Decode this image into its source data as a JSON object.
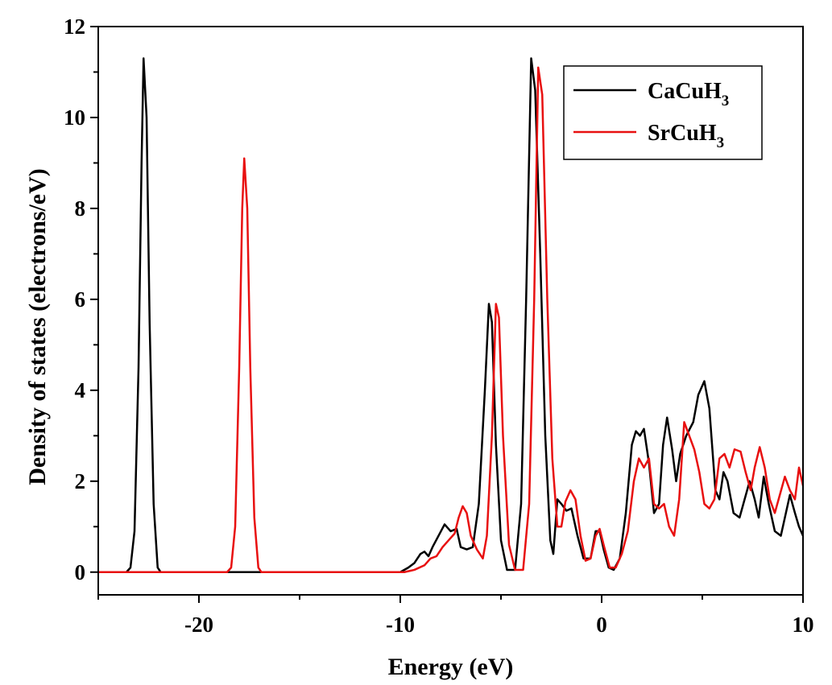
{
  "chart_data": {
    "type": "line",
    "xlabel": "Energy (eV)",
    "ylabel": "Density of states (electrons/eV)",
    "xlim": [
      -25,
      10
    ],
    "ylim": [
      -0.5,
      12
    ],
    "xticks": [
      -20,
      -10,
      0,
      10
    ],
    "yticks": [
      0,
      2,
      4,
      6,
      8,
      10,
      12
    ],
    "grid": false,
    "legend_position": "top-right",
    "series": [
      {
        "name": "CaCuH3",
        "legend": {
          "base": "CaCuH",
          "sub": "3"
        },
        "color": "#000000",
        "points": [
          [
            -25,
            0
          ],
          [
            -23.6,
            0
          ],
          [
            -23.4,
            0.1
          ],
          [
            -23.2,
            0.9
          ],
          [
            -23.0,
            4.5
          ],
          [
            -22.85,
            9.0
          ],
          [
            -22.75,
            11.3
          ],
          [
            -22.6,
            10.0
          ],
          [
            -22.45,
            5.5
          ],
          [
            -22.25,
            1.5
          ],
          [
            -22.05,
            0.1
          ],
          [
            -21.9,
            0
          ],
          [
            -10,
            0
          ],
          [
            -9.6,
            0.1
          ],
          [
            -9.3,
            0.2
          ],
          [
            -9.0,
            0.4
          ],
          [
            -8.8,
            0.45
          ],
          [
            -8.6,
            0.35
          ],
          [
            -8.4,
            0.55
          ],
          [
            -8.1,
            0.8
          ],
          [
            -7.8,
            1.05
          ],
          [
            -7.5,
            0.9
          ],
          [
            -7.2,
            0.95
          ],
          [
            -7.0,
            0.55
          ],
          [
            -6.7,
            0.5
          ],
          [
            -6.4,
            0.55
          ],
          [
            -6.1,
            1.5
          ],
          [
            -5.8,
            4.0
          ],
          [
            -5.6,
            5.9
          ],
          [
            -5.45,
            5.5
          ],
          [
            -5.25,
            2.8
          ],
          [
            -5.0,
            0.7
          ],
          [
            -4.7,
            0.05
          ],
          [
            -4.3,
            0.05
          ],
          [
            -4.0,
            1.5
          ],
          [
            -3.75,
            6.0
          ],
          [
            -3.5,
            11.3
          ],
          [
            -3.3,
            10.6
          ],
          [
            -3.05,
            7.0
          ],
          [
            -2.8,
            3.0
          ],
          [
            -2.55,
            0.7
          ],
          [
            -2.4,
            0.4
          ],
          [
            -2.2,
            1.6
          ],
          [
            -2.0,
            1.5
          ],
          [
            -1.75,
            1.35
          ],
          [
            -1.5,
            1.4
          ],
          [
            -1.2,
            0.8
          ],
          [
            -0.9,
            0.3
          ],
          [
            -0.55,
            0.3
          ],
          [
            -0.3,
            0.9
          ],
          [
            -0.1,
            0.9
          ],
          [
            0.1,
            0.5
          ],
          [
            0.35,
            0.1
          ],
          [
            0.6,
            0.05
          ],
          [
            0.9,
            0.3
          ],
          [
            1.2,
            1.3
          ],
          [
            1.5,
            2.8
          ],
          [
            1.7,
            3.1
          ],
          [
            1.9,
            3.0
          ],
          [
            2.1,
            3.15
          ],
          [
            2.35,
            2.4
          ],
          [
            2.6,
            1.3
          ],
          [
            2.85,
            1.5
          ],
          [
            3.05,
            2.8
          ],
          [
            3.25,
            3.4
          ],
          [
            3.5,
            2.7
          ],
          [
            3.7,
            2.0
          ],
          [
            3.9,
            2.6
          ],
          [
            4.2,
            3.0
          ],
          [
            4.55,
            3.3
          ],
          [
            4.8,
            3.9
          ],
          [
            5.1,
            4.2
          ],
          [
            5.35,
            3.6
          ],
          [
            5.65,
            1.8
          ],
          [
            5.85,
            1.6
          ],
          [
            6.05,
            2.2
          ],
          [
            6.25,
            2.0
          ],
          [
            6.55,
            1.3
          ],
          [
            6.85,
            1.2
          ],
          [
            7.1,
            1.6
          ],
          [
            7.35,
            2.0
          ],
          [
            7.6,
            1.6
          ],
          [
            7.8,
            1.2
          ],
          [
            8.05,
            2.1
          ],
          [
            8.3,
            1.5
          ],
          [
            8.6,
            0.9
          ],
          [
            8.9,
            0.8
          ],
          [
            9.15,
            1.3
          ],
          [
            9.35,
            1.7
          ],
          [
            9.6,
            1.3
          ],
          [
            9.8,
            1.0
          ],
          [
            10.0,
            0.8
          ]
        ]
      },
      {
        "name": "SrCuH3",
        "legend": {
          "base": "SrCuH",
          "sub": "3"
        },
        "color": "#e81010",
        "points": [
          [
            -25,
            0
          ],
          [
            -18.6,
            0
          ],
          [
            -18.4,
            0.1
          ],
          [
            -18.2,
            1.0
          ],
          [
            -18.0,
            4.5
          ],
          [
            -17.85,
            8.0
          ],
          [
            -17.75,
            9.1
          ],
          [
            -17.6,
            8.0
          ],
          [
            -17.45,
            4.5
          ],
          [
            -17.25,
            1.2
          ],
          [
            -17.05,
            0.1
          ],
          [
            -16.9,
            0
          ],
          [
            -9.8,
            0
          ],
          [
            -9.3,
            0.05
          ],
          [
            -8.8,
            0.15
          ],
          [
            -8.5,
            0.3
          ],
          [
            -8.2,
            0.35
          ],
          [
            -7.9,
            0.55
          ],
          [
            -7.6,
            0.7
          ],
          [
            -7.3,
            0.85
          ],
          [
            -7.1,
            1.2
          ],
          [
            -6.9,
            1.45
          ],
          [
            -6.7,
            1.3
          ],
          [
            -6.5,
            0.8
          ],
          [
            -6.2,
            0.5
          ],
          [
            -5.9,
            0.3
          ],
          [
            -5.7,
            0.8
          ],
          [
            -5.45,
            3.0
          ],
          [
            -5.25,
            5.9
          ],
          [
            -5.1,
            5.6
          ],
          [
            -4.9,
            3.0
          ],
          [
            -4.6,
            0.6
          ],
          [
            -4.3,
            0.05
          ],
          [
            -3.9,
            0.05
          ],
          [
            -3.6,
            1.5
          ],
          [
            -3.35,
            6.0
          ],
          [
            -3.15,
            11.1
          ],
          [
            -2.95,
            10.5
          ],
          [
            -2.7,
            6.0
          ],
          [
            -2.45,
            2.5
          ],
          [
            -2.2,
            1.0
          ],
          [
            -2.0,
            1.0
          ],
          [
            -1.8,
            1.55
          ],
          [
            -1.55,
            1.8
          ],
          [
            -1.3,
            1.6
          ],
          [
            -1.05,
            0.8
          ],
          [
            -0.8,
            0.25
          ],
          [
            -0.55,
            0.3
          ],
          [
            -0.3,
            0.8
          ],
          [
            -0.1,
            0.95
          ],
          [
            0.1,
            0.6
          ],
          [
            0.4,
            0.1
          ],
          [
            0.7,
            0.1
          ],
          [
            1.0,
            0.4
          ],
          [
            1.3,
            0.9
          ],
          [
            1.6,
            2.0
          ],
          [
            1.85,
            2.5
          ],
          [
            2.1,
            2.3
          ],
          [
            2.35,
            2.5
          ],
          [
            2.6,
            1.5
          ],
          [
            2.85,
            1.4
          ],
          [
            3.1,
            1.5
          ],
          [
            3.35,
            1.0
          ],
          [
            3.6,
            0.8
          ],
          [
            3.85,
            1.6
          ],
          [
            4.1,
            3.3
          ],
          [
            4.35,
            3.0
          ],
          [
            4.6,
            2.7
          ],
          [
            4.85,
            2.2
          ],
          [
            5.1,
            1.5
          ],
          [
            5.35,
            1.4
          ],
          [
            5.6,
            1.6
          ],
          [
            5.85,
            2.5
          ],
          [
            6.1,
            2.6
          ],
          [
            6.35,
            2.3
          ],
          [
            6.6,
            2.7
          ],
          [
            6.9,
            2.65
          ],
          [
            7.15,
            2.2
          ],
          [
            7.4,
            1.8
          ],
          [
            7.6,
            2.3
          ],
          [
            7.85,
            2.75
          ],
          [
            8.1,
            2.3
          ],
          [
            8.35,
            1.6
          ],
          [
            8.6,
            1.3
          ],
          [
            8.85,
            1.7
          ],
          [
            9.1,
            2.1
          ],
          [
            9.35,
            1.8
          ],
          [
            9.6,
            1.6
          ],
          [
            9.8,
            2.3
          ],
          [
            10.0,
            1.9
          ]
        ]
      }
    ]
  }
}
